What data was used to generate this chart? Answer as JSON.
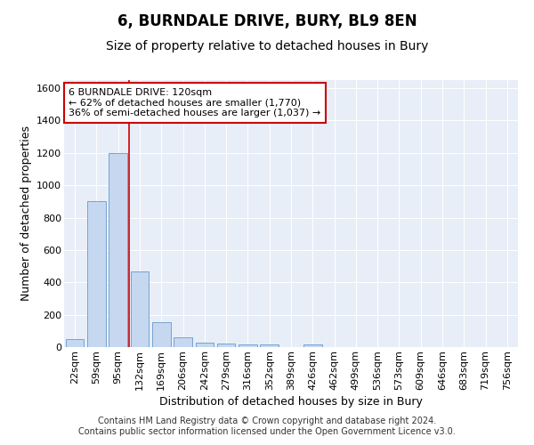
{
  "title": "6, BURNDALE DRIVE, BURY, BL9 8EN",
  "subtitle": "Size of property relative to detached houses in Bury",
  "xlabel": "Distribution of detached houses by size in Bury",
  "ylabel": "Number of detached properties",
  "categories": [
    "22sqm",
    "59sqm",
    "95sqm",
    "132sqm",
    "169sqm",
    "206sqm",
    "242sqm",
    "279sqm",
    "316sqm",
    "352sqm",
    "389sqm",
    "426sqm",
    "462sqm",
    "499sqm",
    "536sqm",
    "573sqm",
    "609sqm",
    "646sqm",
    "683sqm",
    "719sqm",
    "756sqm"
  ],
  "values": [
    50,
    900,
    1200,
    470,
    155,
    60,
    30,
    20,
    15,
    15,
    0,
    15,
    0,
    0,
    0,
    0,
    0,
    0,
    0,
    0,
    0
  ],
  "bar_color": "#c5d8f0",
  "bar_edge_color": "#6699cc",
  "property_line_x": 2.5,
  "property_line_color": "#cc0000",
  "annotation_text": "6 BURNDALE DRIVE: 120sqm\n← 62% of detached houses are smaller (1,770)\n36% of semi-detached houses are larger (1,037) →",
  "annotation_box_color": "#ffffff",
  "annotation_box_edge": "#cc0000",
  "ylim": [
    0,
    1650
  ],
  "yticks": [
    0,
    200,
    400,
    600,
    800,
    1000,
    1200,
    1400,
    1600
  ],
  "bg_color": "#e8eef8",
  "footer": "Contains HM Land Registry data © Crown copyright and database right 2024.\nContains public sector information licensed under the Open Government Licence v3.0.",
  "title_fontsize": 12,
  "subtitle_fontsize": 10,
  "xlabel_fontsize": 9,
  "ylabel_fontsize": 9,
  "annotation_fontsize": 8,
  "footer_fontsize": 7,
  "tick_fontsize": 8
}
